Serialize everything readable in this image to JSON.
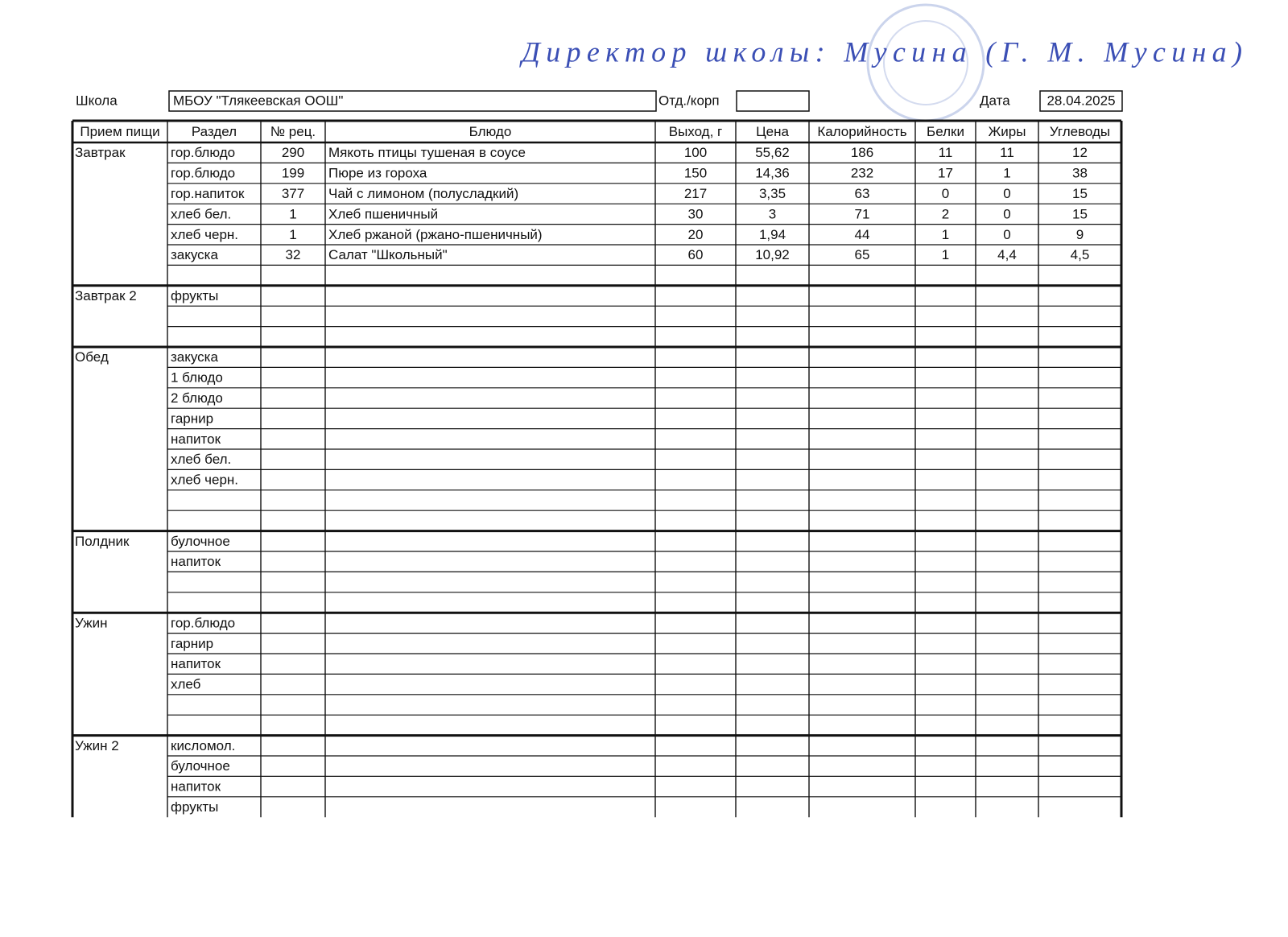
{
  "signature": "Директор школы: Мусина (Г. М. Мусина)",
  "header": {
    "school_label": "Школа",
    "school": "МБОУ \"Тлякеевская ООШ\"",
    "branch_label": "Отд./корп",
    "date_label": "Дата",
    "date": "28.04.2025"
  },
  "table": {
    "columns": [
      "Прием пищи",
      "Раздел",
      "№ рец.",
      "Блюдо",
      "Выход, г",
      "Цена",
      "Калорийность",
      "Белки",
      "Жиры",
      "Углеводы"
    ],
    "meals": [
      {
        "name": "Завтрак",
        "rows": [
          [
            "гор.блюдо",
            "290",
            "Мякоть птицы тушеная в соусе",
            "100",
            "55,62",
            "186",
            "11",
            "11",
            "12"
          ],
          [
            "гор.блюдо",
            "199",
            "Пюре из гороха",
            "150",
            "14,36",
            "232",
            "17",
            "1",
            "38"
          ],
          [
            "гор.напиток",
            "377",
            "Чай с лимоном (полусладкий)",
            "217",
            "3,35",
            "63",
            "0",
            "0",
            "15"
          ],
          [
            "хлеб бел.",
            "1",
            "Хлеб пшеничный",
            "30",
            "3",
            "71",
            "2",
            "0",
            "15"
          ],
          [
            "хлеб черн.",
            "1",
            "Хлеб ржаной (ржано-пшеничный)",
            "20",
            "1,94",
            "44",
            "1",
            "0",
            "9"
          ],
          [
            "закуска",
            "32",
            "Салат \"Школьный\"",
            "60",
            "10,92",
            "65",
            "1",
            "4,4",
            "4,5"
          ],
          []
        ]
      },
      {
        "name": "Завтрак 2",
        "rows": [
          [
            "фрукты"
          ],
          [],
          []
        ]
      },
      {
        "name": "Обед",
        "rows": [
          [
            "закуска"
          ],
          [
            "1 блюдо"
          ],
          [
            "2 блюдо"
          ],
          [
            "гарнир"
          ],
          [
            "напиток"
          ],
          [
            "хлеб бел."
          ],
          [
            "хлеб черн."
          ],
          [],
          []
        ]
      },
      {
        "name": "Полдник",
        "rows": [
          [
            "булочное"
          ],
          [
            "напиток"
          ],
          [],
          []
        ]
      },
      {
        "name": "Ужин",
        "rows": [
          [
            "гор.блюдо"
          ],
          [
            "гарнир"
          ],
          [
            "напиток"
          ],
          [
            "хлеб"
          ],
          [],
          []
        ]
      },
      {
        "name": "Ужин 2",
        "rows": [
          [
            "кисломол."
          ],
          [
            "булочное"
          ],
          [
            "напиток"
          ],
          [
            "фрукты"
          ]
        ]
      }
    ]
  }
}
